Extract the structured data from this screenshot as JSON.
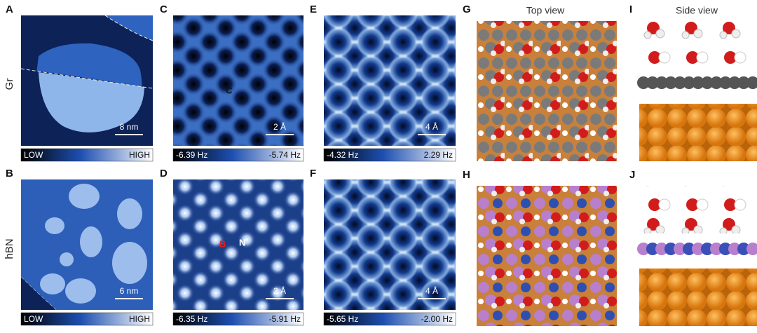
{
  "column_headers": {
    "top_view": "Top view",
    "side_view": "Side view"
  },
  "row_labels": [
    "Gr",
    "hBN"
  ],
  "panels": [
    {
      "letter": "A",
      "scale_bar": "8 nm",
      "colorbar": [
        "LOW",
        "HIGH"
      ]
    },
    {
      "letter": "C",
      "scale_bar": "2 Å",
      "colorbar": [
        "-6.39 Hz",
        "-5.74 Hz"
      ],
      "annotations": [
        "C"
      ]
    },
    {
      "letter": "E",
      "scale_bar": "4 Å",
      "colorbar": [
        "-4.32 Hz",
        "2.29 Hz"
      ]
    },
    {
      "letter": "G"
    },
    {
      "letter": "I"
    },
    {
      "letter": "B",
      "scale_bar": "6 nm",
      "colorbar": [
        "LOW",
        "HIGH"
      ]
    },
    {
      "letter": "D",
      "scale_bar": "2 Å",
      "colorbar": [
        "-6.35 Hz",
        "-5.91 Hz"
      ],
      "annotations": [
        "B",
        "N"
      ]
    },
    {
      "letter": "F",
      "scale_bar": "4 Å",
      "colorbar": [
        "-5.65 Hz",
        "-2.00 Hz"
      ]
    },
    {
      "letter": "H"
    },
    {
      "letter": "J"
    }
  ]
}
